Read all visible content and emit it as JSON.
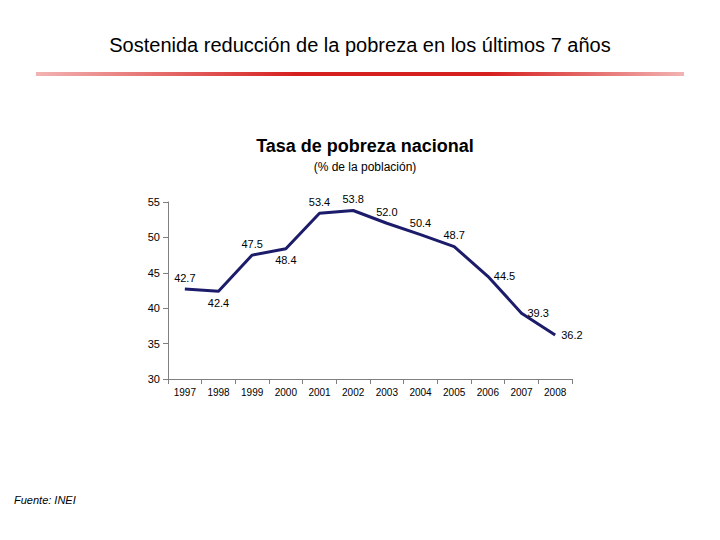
{
  "page": {
    "title": "Sostenida reducción de la pobreza en los últimos 7 años",
    "source": "Fuente: INEI"
  },
  "chart_data": {
    "type": "line",
    "title": "Tasa de pobreza nacional",
    "subtitle": "(% de la población)",
    "categories": [
      "1997",
      "1998",
      "1999",
      "2000",
      "2001",
      "2002",
      "2003",
      "2004",
      "2005",
      "2006",
      "2007",
      "2008"
    ],
    "values": [
      42.7,
      42.4,
      47.5,
      48.4,
      53.4,
      53.8,
      52.0,
      50.4,
      48.7,
      44.5,
      39.3,
      36.2
    ],
    "value_labels": [
      "42.7",
      "42.4",
      "47.5",
      "48.4",
      "53.4",
      "53.8",
      "52.0",
      "50.4",
      "48.7",
      "44.5",
      "39.3",
      "36.2"
    ],
    "color": "#1c1c6b",
    "ylim": [
      30,
      55
    ],
    "yticks": [
      30,
      35,
      40,
      45,
      50,
      55
    ],
    "grid": false,
    "data_labels": true,
    "marker": "none",
    "line_style": "solid"
  }
}
